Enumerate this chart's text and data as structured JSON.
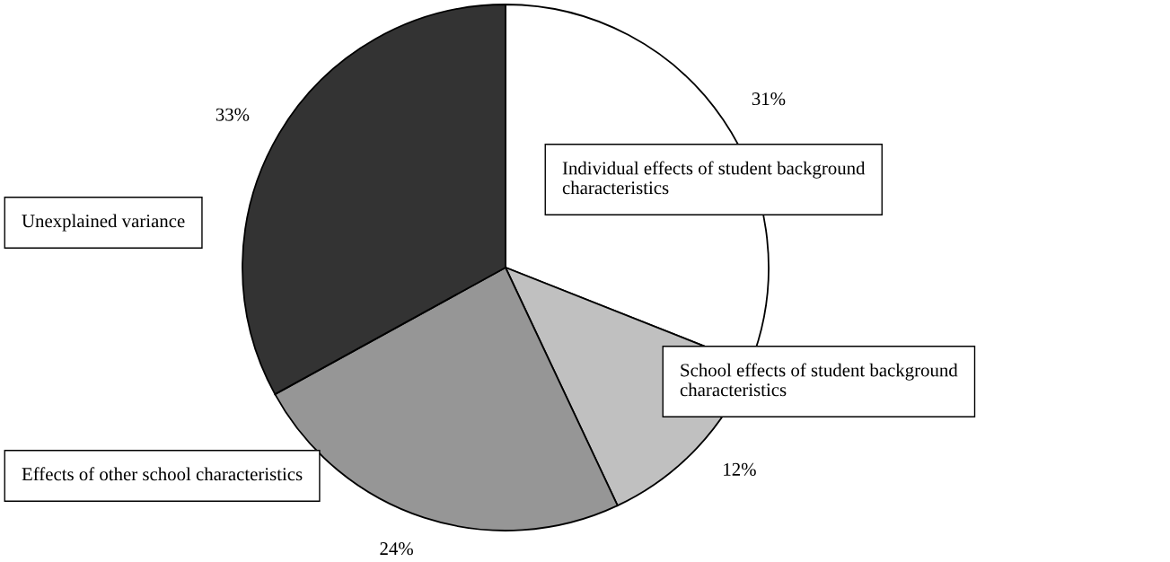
{
  "chart_data": {
    "type": "pie",
    "categories": [
      "Individual effects of student background\ncharacteristics",
      "School effects of student background\ncharacteristics",
      "Effects of other school characteristics",
      "Unexplained variance"
    ],
    "values": [
      31,
      12,
      24,
      33
    ],
    "colors": [
      "#ffffff",
      "#c0c0c0",
      "#969696",
      "#333333"
    ],
    "value_labels": [
      "31%",
      "12%",
      "24%",
      "33%"
    ],
    "legend": false
  }
}
